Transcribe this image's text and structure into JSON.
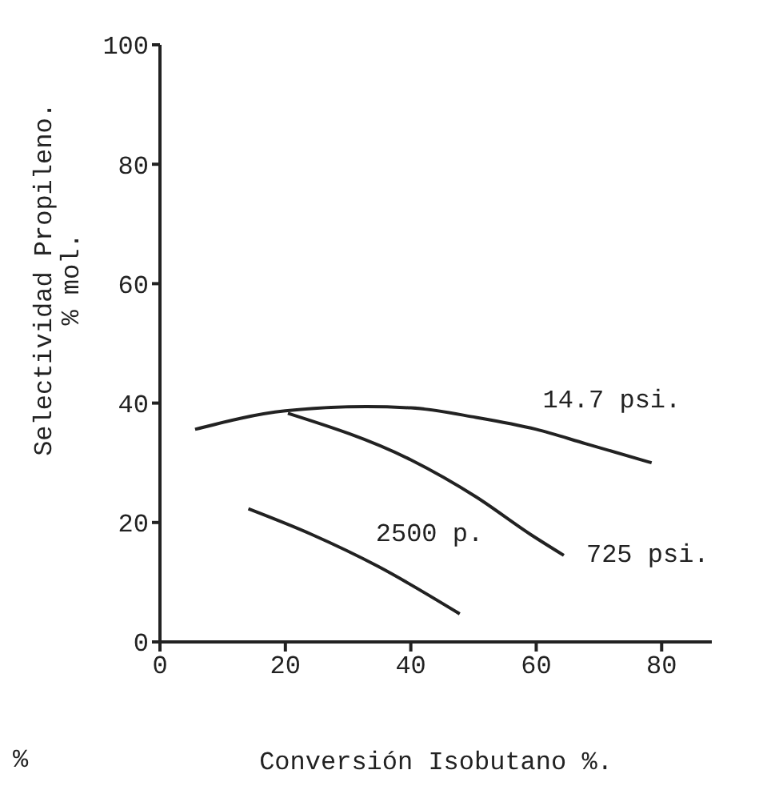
{
  "chart_data": {
    "type": "line",
    "xlabel": "Conversión Isobutano %.",
    "ylabel": "Selectividad Propileno.\n% mol.",
    "xlim": [
      0,
      88
    ],
    "ylim": [
      0,
      100
    ],
    "xticks": [
      0,
      20,
      40,
      60,
      80
    ],
    "yticks": [
      0,
      20,
      40,
      60,
      80,
      100
    ],
    "marker": "none",
    "line_style": "solid",
    "series": [
      {
        "name": "14.7 psi.",
        "color": "#222222",
        "x": [
          5.6,
          20,
          32.9,
          40,
          50.4,
          60,
          67.9,
          78.4
        ],
        "values": [
          35.6,
          38.7,
          39.4,
          39.2,
          37.6,
          35.6,
          33.2,
          30.0
        ]
      },
      {
        "name": "725 psi.",
        "color": "#222222",
        "x": [
          20.4,
          40,
          50.4,
          59.1,
          64.4
        ],
        "values": [
          38.3,
          30.5,
          24.3,
          18.0,
          14.5
        ]
      },
      {
        "name": "2500 p.",
        "color": "#222222",
        "x": [
          14.1,
          24.2,
          34.7,
          47.8
        ],
        "values": [
          22.3,
          18.0,
          12.7,
          4.7
        ]
      }
    ],
    "annotations": [
      "%"
    ]
  }
}
